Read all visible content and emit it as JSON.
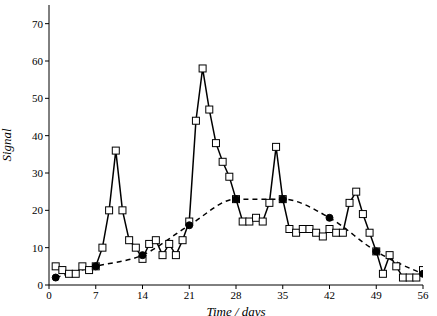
{
  "chart_data": {
    "type": "line",
    "x_label": "Time / days",
    "y_label": "Signal",
    "xlim": [
      0,
      56
    ],
    "xticks": [
      0,
      7,
      14,
      21,
      28,
      35,
      42,
      49,
      56
    ],
    "ylim": [
      0,
      75
    ],
    "yticks": [
      0,
      10,
      20,
      30,
      40,
      50,
      60,
      70
    ],
    "grid": false,
    "series": [
      {
        "color": "#000000",
        "marker": "square",
        "line_style": "solid",
        "x": [
          1,
          2,
          3,
          4,
          5,
          6,
          7,
          8,
          9,
          10,
          11,
          12,
          13,
          14,
          15,
          16,
          17,
          18,
          19,
          20,
          21,
          22,
          23,
          24,
          25,
          26,
          27,
          28,
          29,
          30,
          31,
          32,
          33,
          34,
          35,
          36,
          37,
          38,
          39,
          40,
          41,
          42,
          43,
          44,
          45,
          46,
          47,
          48,
          49,
          50,
          51,
          52,
          53,
          54,
          55,
          56
        ],
        "values": [
          5,
          4,
          3,
          3,
          5,
          4,
          5,
          10,
          20,
          36,
          20,
          12,
          10,
          7,
          11,
          12,
          8,
          11,
          8,
          12,
          17,
          44,
          58,
          47,
          38,
          33,
          29,
          23,
          17,
          17,
          18,
          17,
          22,
          37,
          23,
          15,
          14,
          15,
          15,
          14,
          13,
          15,
          14,
          14,
          22,
          25,
          19,
          14,
          9,
          3,
          8,
          5,
          2,
          2,
          2,
          4
        ]
      },
      {
        "color": "#000000",
        "marker": "circle",
        "line_style": "dashed",
        "x": [
          1,
          7,
          14,
          21,
          28,
          35,
          42,
          49,
          56
        ],
        "values": [
          2,
          5,
          8,
          16,
          23,
          23,
          18,
          9,
          3
        ]
      }
    ]
  }
}
